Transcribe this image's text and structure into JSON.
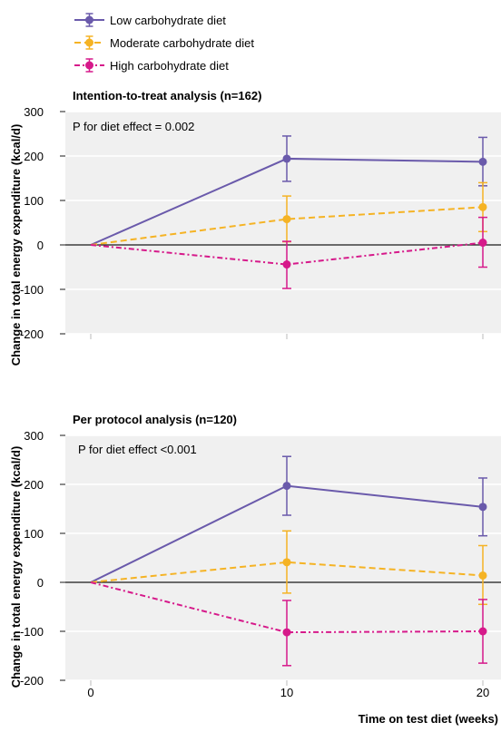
{
  "legend": {
    "items": [
      {
        "label": "Low carbohydrate diet",
        "color": "#6a5aab",
        "dash": "solid"
      },
      {
        "label": "Moderate carbohydrate diet",
        "color": "#f5b324",
        "dash": "dashed"
      },
      {
        "label": "High carbohydrate diet",
        "color": "#d6198a",
        "dash": "dashdot"
      }
    ]
  },
  "ylabel": "Change in total energy expenditure (kcal/d)",
  "xlabel": "Time on test diet (weeks)",
  "chart_data": [
    {
      "type": "line",
      "title": "Intention-to-treat analysis (n=162)",
      "annotation": "P for diet effect = 0.002",
      "x": [
        0,
        10,
        20
      ],
      "xticks": [
        "",
        "",
        ""
      ],
      "ylim": [
        -200,
        300
      ],
      "yticks": [
        300,
        200,
        100,
        0,
        -100,
        -200
      ],
      "ytick_labels": [
        "300",
        "200",
        "100",
        "0",
        "-100",
        "-200"
      ],
      "series": [
        {
          "name": "Low carbohydrate diet",
          "values": [
            0,
            194,
            187
          ],
          "lower": [
            0,
            143,
            133
          ],
          "upper": [
            0,
            245,
            242
          ],
          "color": "#6a5aab",
          "dash": "solid"
        },
        {
          "name": "Moderate carbohydrate diet",
          "values": [
            0,
            58,
            85
          ],
          "lower": [
            0,
            7,
            30
          ],
          "upper": [
            0,
            110,
            140
          ],
          "color": "#f5b324",
          "dash": "dashed"
        },
        {
          "name": "High carbohydrate diet",
          "values": [
            0,
            -44,
            5
          ],
          "lower": [
            0,
            -98,
            -50
          ],
          "upper": [
            0,
            8,
            62
          ],
          "color": "#d6198a",
          "dash": "dashdot"
        }
      ]
    },
    {
      "type": "line",
      "title": "Per protocol analysis (n=120)",
      "annotation": "P for diet effect <0.001",
      "x": [
        0,
        10,
        20
      ],
      "xticks": [
        "0",
        "10",
        "20"
      ],
      "ylim": [
        -200,
        300
      ],
      "yticks": [
        300,
        200,
        100,
        0,
        -100,
        -200
      ],
      "ytick_labels": [
        "300",
        "200",
        "100",
        "0",
        "-100",
        "-200"
      ],
      "series": [
        {
          "name": "Low carbohydrate diet",
          "values": [
            0,
            197,
            154
          ],
          "lower": [
            0,
            137,
            95
          ],
          "upper": [
            0,
            257,
            213
          ],
          "color": "#6a5aab",
          "dash": "solid"
        },
        {
          "name": "Moderate carbohydrate diet",
          "values": [
            0,
            41,
            14
          ],
          "lower": [
            0,
            -22,
            -45
          ],
          "upper": [
            0,
            105,
            75
          ],
          "color": "#f5b324",
          "dash": "dashed"
        },
        {
          "name": "High carbohydrate diet",
          "values": [
            0,
            -102,
            -100
          ],
          "lower": [
            0,
            -170,
            -165
          ],
          "upper": [
            0,
            -37,
            -35
          ],
          "color": "#d6198a",
          "dash": "dashdot"
        }
      ]
    }
  ]
}
